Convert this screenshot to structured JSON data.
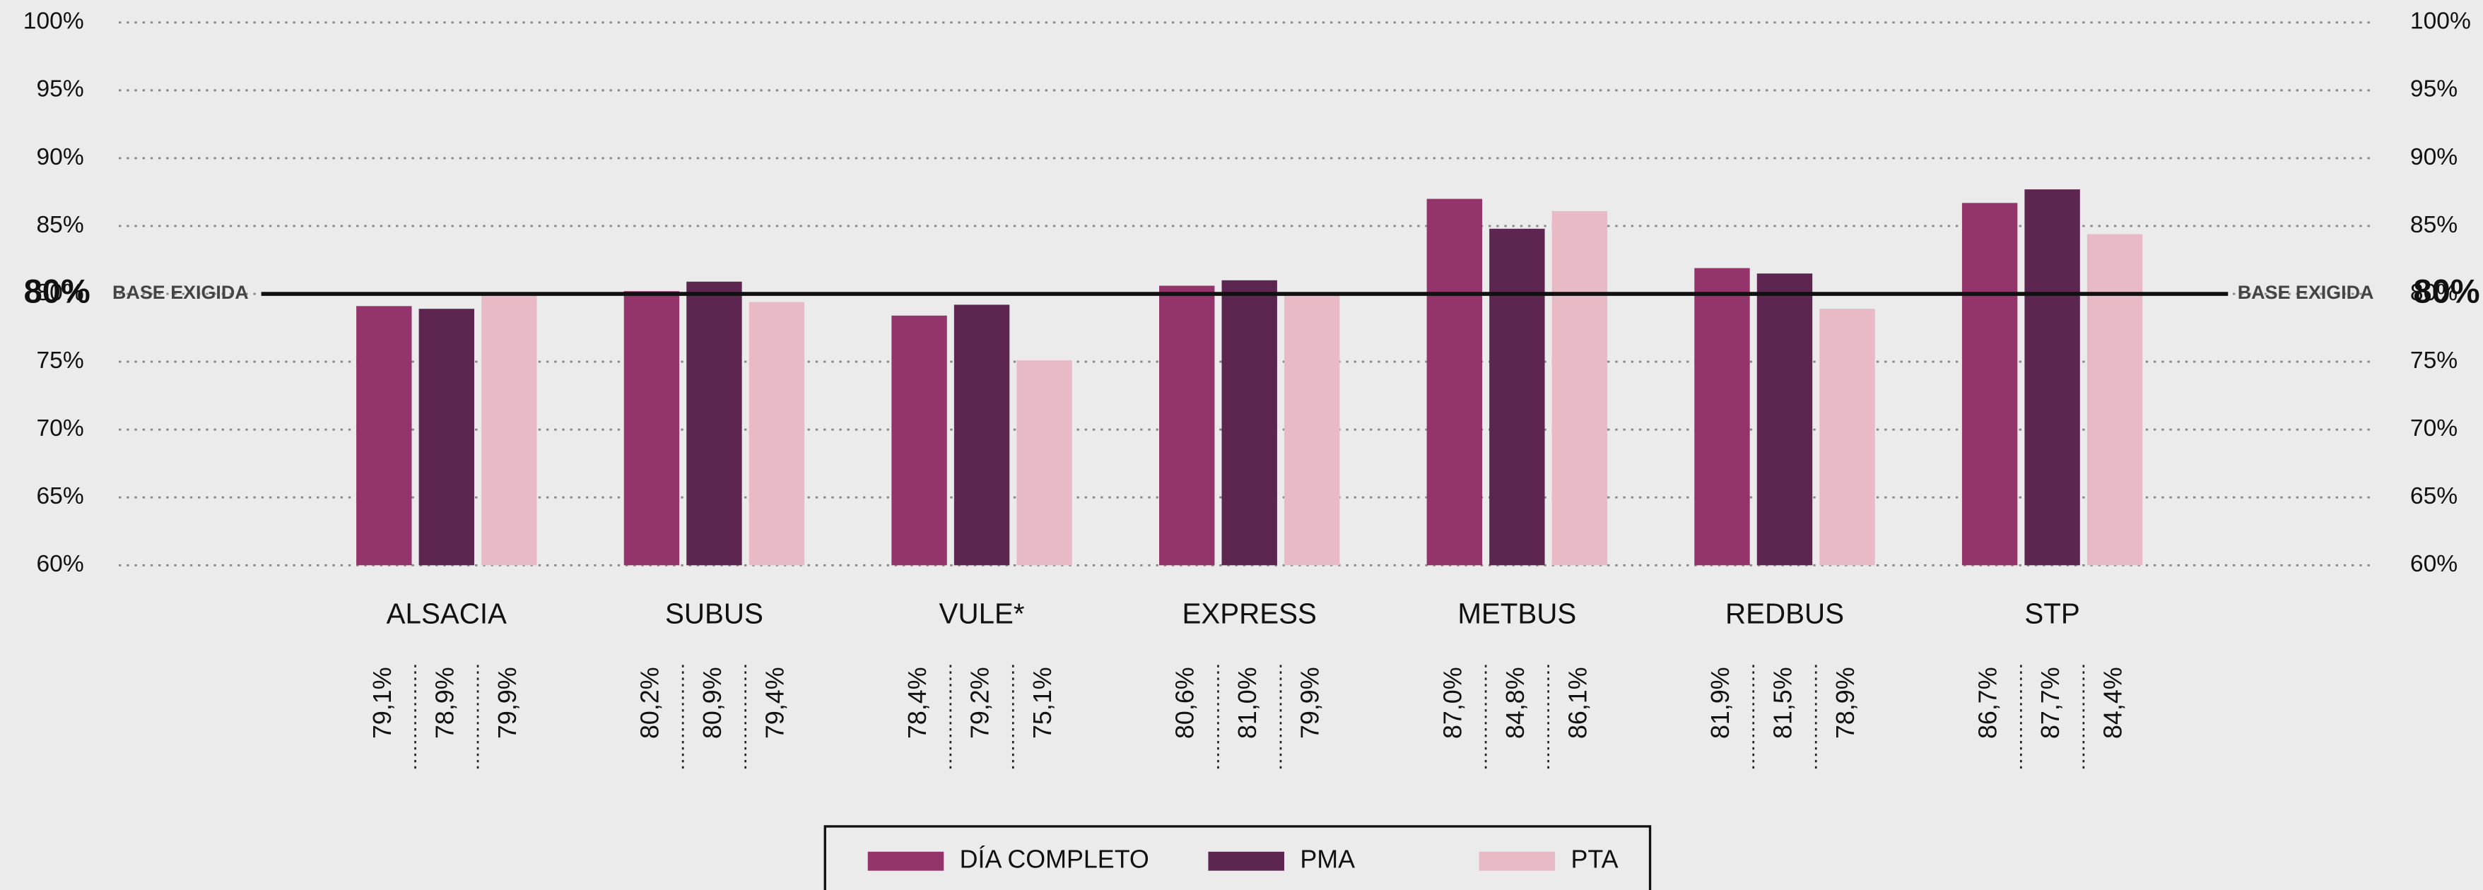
{
  "chart_data": {
    "type": "bar",
    "categories": [
      "ALSACIA",
      "SUBUS",
      "VULE*",
      "EXPRESS",
      "METBUS",
      "REDBUS",
      "STP"
    ],
    "series": [
      {
        "name": "DÍA COMPLETO",
        "color": "#93356b",
        "values": [
          79.1,
          80.2,
          78.4,
          80.6,
          87.0,
          81.9,
          86.7
        ],
        "value_labels": [
          "79,1%",
          "80,2%",
          "78,4%",
          "80,6%",
          "87,0%",
          "81,9%",
          "86,7%"
        ]
      },
      {
        "name": "PMA",
        "color": "#5c2651",
        "values": [
          78.9,
          80.9,
          79.2,
          81.0,
          84.8,
          81.5,
          87.7
        ],
        "value_labels": [
          "78,9%",
          "80,9%",
          "79,2%",
          "81,0%",
          "84,8%",
          "81,5%",
          "87,7%"
        ]
      },
      {
        "name": "PTA",
        "color": "#e8bac6",
        "values": [
          79.9,
          79.4,
          75.1,
          79.9,
          86.1,
          78.9,
          84.4
        ],
        "value_labels": [
          "79,9%",
          "79,4%",
          "75,1%",
          "79,9%",
          "86,1%",
          "78,9%",
          "84,4%"
        ]
      }
    ],
    "ylim": [
      60,
      100
    ],
    "yticks": [
      {
        "value": 60,
        "label": "60%"
      },
      {
        "value": 65,
        "label": "65%"
      },
      {
        "value": 70,
        "label": "70%"
      },
      {
        "value": 75,
        "label": "75%"
      },
      {
        "value": 80,
        "label": "80%"
      },
      {
        "value": 85,
        "label": "85%"
      },
      {
        "value": 90,
        "label": "90%"
      },
      {
        "value": 95,
        "label": "95%"
      },
      {
        "value": 100,
        "label": "100%"
      }
    ],
    "grid": true,
    "reference_line": {
      "value": 80,
      "label": "80%",
      "text": "BASE EXIGIDA"
    },
    "legend": "bottom"
  }
}
